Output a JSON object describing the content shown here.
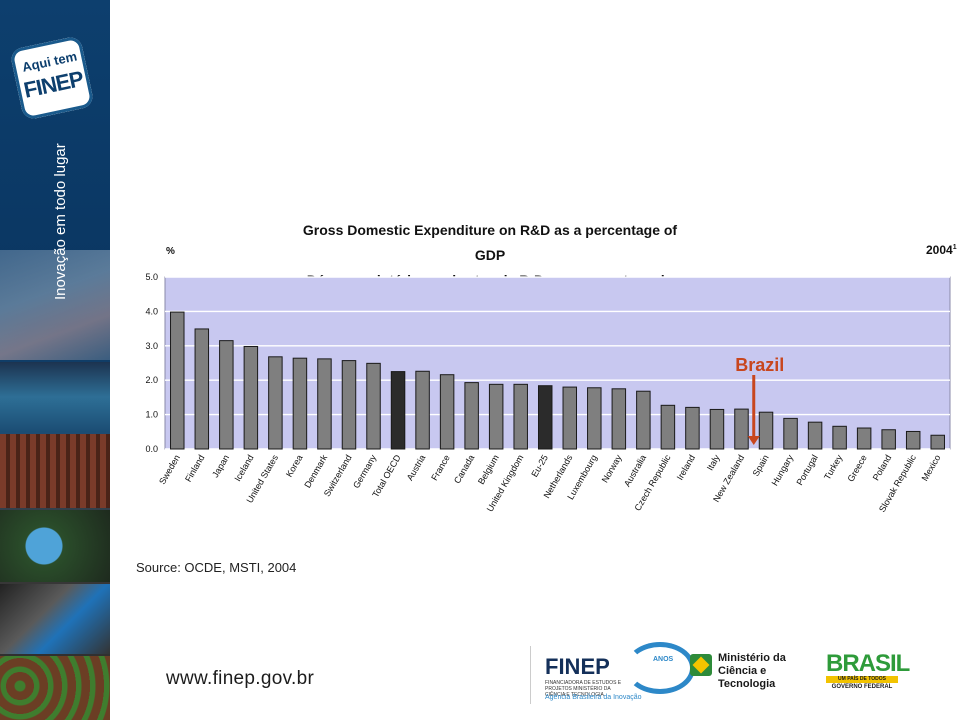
{
  "sidebar": {
    "badge_line1": "Aqui tem",
    "badge_line2": "FINEP",
    "slogan": "Inovação em todo lugar"
  },
  "chart_data": {
    "type": "bar",
    "title": "Gross Domestic Expenditure on R&D as a percentage of GDP",
    "subtitle": "Dépenses intérieures brutes de R-D en pourcentage du PIB",
    "ylabel": "%",
    "year": "2004",
    "year_note": "1",
    "ylim": [
      0,
      5
    ],
    "yticks": [
      "0.0",
      "1.0",
      "2.0",
      "3.0",
      "4.0",
      "5.0"
    ],
    "grid": true,
    "plot_background": "#c8c8f0",
    "bar_color": "#7f7f7f",
    "highlight_color": "#2b2b2b",
    "categories": [
      "Sweden",
      "Finland",
      "Japan",
      "Iceland",
      "United States",
      "Korea",
      "Denmark",
      "Switzerland",
      "Germany",
      "Total OECD",
      "Austria",
      "France",
      "Canada",
      "Belgium",
      "United Kingdom",
      "Eu-25",
      "Netherlands",
      "Luxembourg",
      "Norway",
      "Australia",
      "Czech Republic",
      "Ireland",
      "Italy",
      "New Zealand",
      "Spain",
      "Hungary",
      "Portugal",
      "Turkey",
      "Greece",
      "Poland",
      "Slovak Republic",
      "Mexico"
    ],
    "values": [
      3.98,
      3.49,
      3.15,
      2.98,
      2.68,
      2.64,
      2.62,
      2.57,
      2.49,
      2.25,
      2.26,
      2.16,
      1.93,
      1.88,
      1.88,
      1.84,
      1.8,
      1.78,
      1.75,
      1.68,
      1.27,
      1.21,
      1.15,
      1.16,
      1.07,
      0.89,
      0.78,
      0.66,
      0.61,
      0.56,
      0.51,
      0.4
    ],
    "highlighted": [
      "Total OECD",
      "Eu-25"
    ],
    "annotation": {
      "label": "Brazil",
      "color": "#c8461e",
      "between": [
        "New Zealand",
        "Spain"
      ],
      "value": 0.0
    }
  },
  "source": "Source: OCDE, MSTI, 2004",
  "footer": {
    "website": "www.finep.gov.br",
    "finep": {
      "name": "FINEP",
      "anos": "ANOS",
      "subtitle": "FINANCIADORA DE ESTUDOS E PROJETOS MINISTÉRIO DA CIÊNCIA E TECNOLOGIA",
      "agency": "Agência Brasileira da Inovação"
    },
    "ministry": "Ministério da Ciência e Tecnologia",
    "brasil": {
      "word": "BRASIL",
      "tagline": "UM PAÍS DE TODOS",
      "gov": "GOVERNO FEDERAL"
    }
  }
}
